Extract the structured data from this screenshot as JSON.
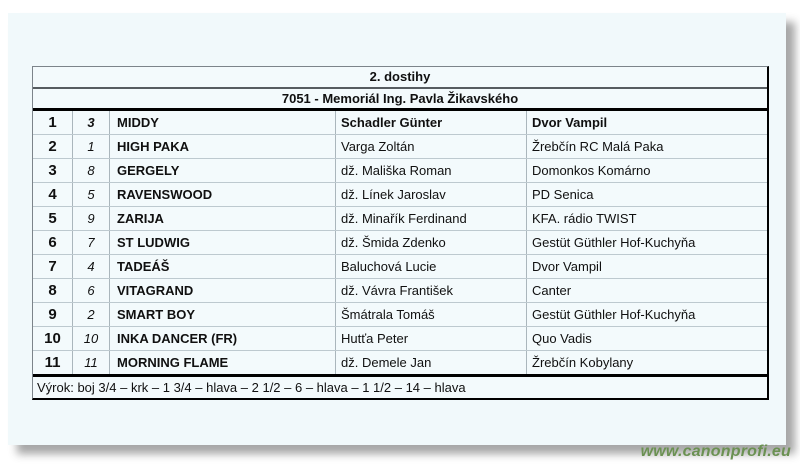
{
  "header": {
    "race_number": "2. dostihy",
    "race_title": "7051 - Memoriál Ing. Pavla Žikavského"
  },
  "results": {
    "rows": [
      {
        "rank": "1",
        "start_no": "3",
        "horse": "MIDDY",
        "jockey": "Schadler Günter",
        "owner": "Dvor Vampil"
      },
      {
        "rank": "2",
        "start_no": "1",
        "horse": "HIGH PAKA",
        "jockey": "Varga Zoltán",
        "owner": "Žrebčín RC Malá Paka"
      },
      {
        "rank": "3",
        "start_no": "8",
        "horse": "GERGELY",
        "jockey": "dž. Mališka Roman",
        "owner": "Domonkos Komárno"
      },
      {
        "rank": "4",
        "start_no": "5",
        "horse": "RAVENSWOOD",
        "jockey": "dž. Línek Jaroslav",
        "owner": "PD Senica"
      },
      {
        "rank": "5",
        "start_no": "9",
        "horse": "ZARIJA",
        "jockey": "dž. Minařík Ferdinand",
        "owner": "KFA. rádio TWIST"
      },
      {
        "rank": "6",
        "start_no": "7",
        "horse": "ST LUDWIG",
        "jockey": "dž. Šmida Zdenko",
        "owner": "Gestüt Güthler Hof-Kuchyňa"
      },
      {
        "rank": "7",
        "start_no": "4",
        "horse": "TADEÁŠ",
        "jockey": "Baluchová Lucie",
        "owner": "Dvor Vampil"
      },
      {
        "rank": "8",
        "start_no": "6",
        "horse": "VITAGRAND",
        "jockey": "dž. Vávra František",
        "owner": "Canter"
      },
      {
        "rank": "9",
        "start_no": "2",
        "horse": "SMART BOY",
        "jockey": "Šmátrala Tomáš",
        "owner": "Gestüt Güthler Hof-Kuchyňa"
      },
      {
        "rank": "10",
        "start_no": "10",
        "horse": "INKA DANCER (FR)",
        "jockey": "Hutťa Peter",
        "owner": "Quo Vadis"
      },
      {
        "rank": "11",
        "start_no": "11",
        "horse": "MORNING FLAME",
        "jockey": "dž. Demele Jan",
        "owner": "Žrebčín Kobylany"
      }
    ]
  },
  "footer": {
    "verdict": "Výrok: boj 3/4 – krk – 1 3/4 – hlava – 2 1/2 – 6 – hlava – 1 1/2 – 14 – hlava"
  },
  "watermark": {
    "text": "www.canonprofi.eu",
    "color": "#6b9152"
  },
  "colors": {
    "page_background": "#f1f9fb",
    "grid_line": "#bdc9cf",
    "heavy_border": "#000000"
  }
}
